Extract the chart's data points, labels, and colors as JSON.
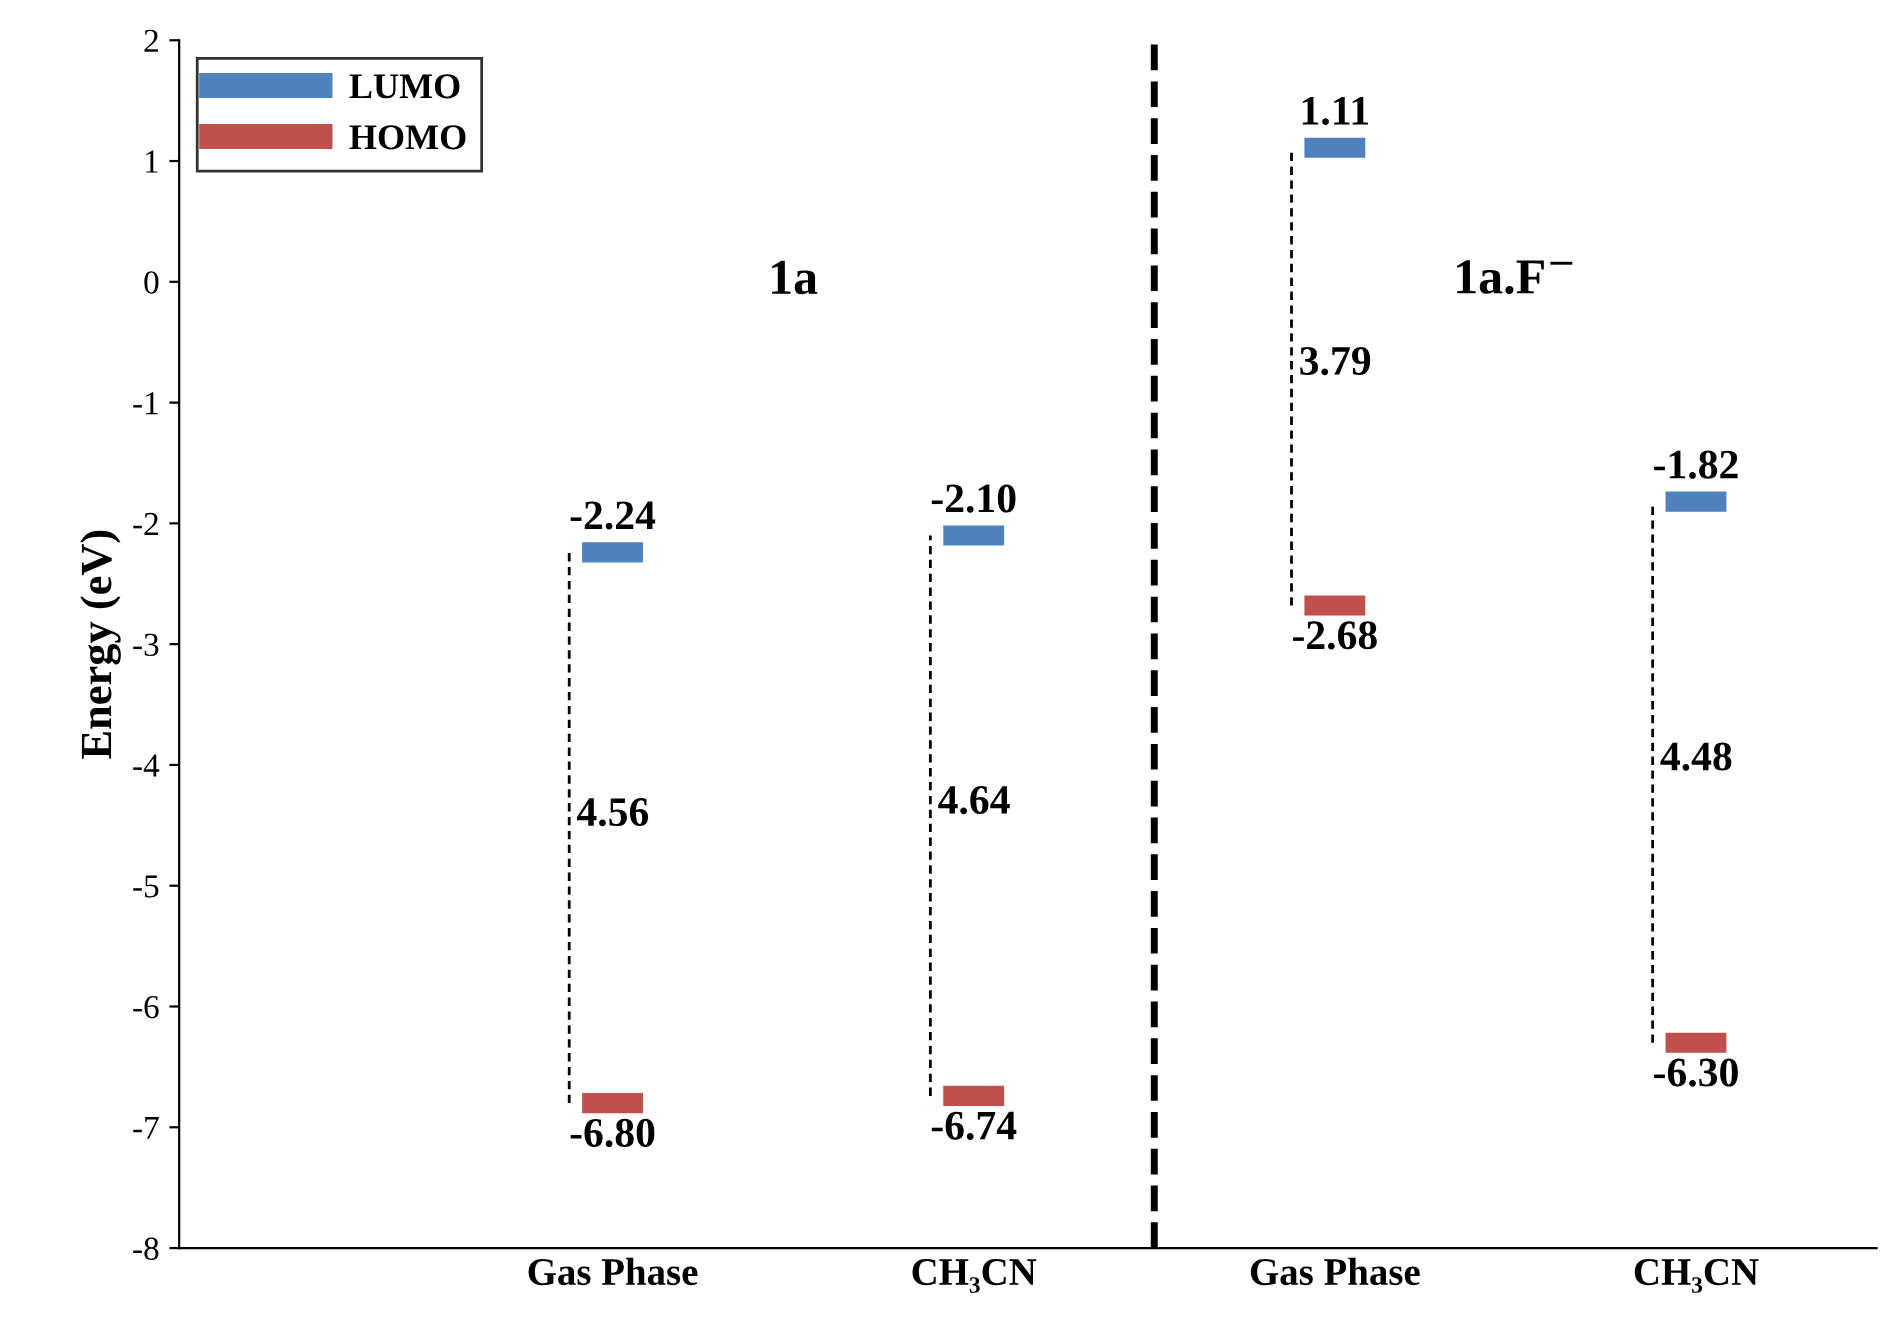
{
  "chart_data": {
    "type": "scatter",
    "ylabel": "Energy (eV)",
    "categories": [
      "Gas Phase",
      "CH₃CN",
      "Gas Phase",
      "CH₃CN"
    ],
    "series": [
      {
        "name": "LUMO",
        "color": "#4f81bd",
        "values": [
          -2.24,
          -2.1,
          1.11,
          -1.82
        ],
        "value_labels": [
          "-2.24",
          "-2.10",
          "1.11",
          "-1.82"
        ]
      },
      {
        "name": "HOMO",
        "color": "#c0504d",
        "values": [
          -6.8,
          -6.74,
          -2.68,
          -6.3
        ],
        "value_labels": [
          "-6.80",
          "-6.74",
          "-2.68",
          "-6.30"
        ]
      }
    ],
    "annotations": [
      "4.56",
      "4.64",
      "3.79",
      "4.48",
      "1a",
      "1a.F$^{−}$"
    ],
    "ylim": [
      -8,
      2
    ],
    "yticks": [
      -8,
      -7,
      -6,
      -5,
      -4,
      -3,
      -2,
      -1,
      0,
      1,
      2
    ],
    "grid": false,
    "legend": "top left"
  }
}
